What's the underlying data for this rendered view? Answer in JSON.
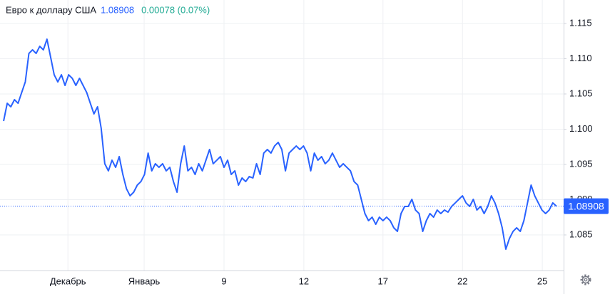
{
  "chart_data": {
    "type": "line",
    "title": "Евро к доллару США",
    "price": 1.08908,
    "change": "0.00078 (0.07%)",
    "color": "#2962ff",
    "price_color": "#2962ff",
    "change_color": "#22ab94",
    "values": [
      1.10116,
      1.10368,
      1.10318,
      1.10419,
      1.10368,
      1.1052,
      1.10671,
      1.11075,
      1.11126,
      1.11075,
      1.11176,
      1.11126,
      1.11277,
      1.11025,
      1.10772,
      1.10671,
      1.10772,
      1.10621,
      1.10772,
      1.10722,
      1.10621,
      1.10722,
      1.10621,
      1.1052,
      1.10368,
      1.10217,
      1.10318,
      1.10015,
      1.0951,
      1.09409,
      1.0956,
      1.09459,
      1.09611,
      1.09358,
      1.09156,
      1.09055,
      1.09106,
      1.09207,
      1.09257,
      1.09358,
      1.09661,
      1.09409,
      1.0951,
      1.09459,
      1.0951,
      1.09409,
      1.09459,
      1.09257,
      1.09106,
      1.0951,
      1.09762,
      1.09409,
      1.09459,
      1.09358,
      1.0951,
      1.09409,
      1.0956,
      1.09712,
      1.0951,
      1.0956,
      1.09611,
      1.09459,
      1.0956,
      1.09358,
      1.09409,
      1.09207,
      1.09308,
      1.09257,
      1.09328,
      1.09308,
      1.0951,
      1.09358,
      1.09661,
      1.09712,
      1.09661,
      1.09762,
      1.09813,
      1.09712,
      1.09409,
      1.09661,
      1.09712,
      1.09762,
      1.09712,
      1.09762,
      1.09661,
      1.09409,
      1.09661,
      1.0956,
      1.09611,
      1.0951,
      1.0956,
      1.09661,
      1.0956,
      1.09459,
      1.0951,
      1.09459,
      1.09409,
      1.09257,
      1.09207,
      1.09005,
      1.08803,
      1.08702,
      1.08752,
      1.08651,
      1.08752,
      1.08702,
      1.08752,
      1.08702,
      1.08601,
      1.0855,
      1.08803,
      1.08904,
      1.08904,
      1.09005,
      1.08853,
      1.08803,
      1.0855,
      1.08702,
      1.08803,
      1.08752,
      1.08853,
      1.08803,
      1.08853,
      1.08823,
      1.08904,
      1.08954,
      1.09005,
      1.09055,
      1.08954,
      1.08904,
      1.09005,
      1.08853,
      1.08904,
      1.08803,
      1.08904,
      1.09055,
      1.08954,
      1.08803,
      1.08601,
      1.08298,
      1.08449,
      1.0855,
      1.08601,
      1.0855,
      1.08702,
      1.08954,
      1.09207,
      1.09055,
      1.08954,
      1.08853,
      1.08803,
      1.08853,
      1.08954,
      1.08908
    ],
    "xlim": [
      -1,
      155
    ],
    "xticks": [
      {
        "value": 17.8,
        "label": "Декабрь"
      },
      {
        "value": 38.9,
        "label": "Январь"
      },
      {
        "value": 61.0,
        "label": "9"
      },
      {
        "value": 83.1,
        "label": "12"
      },
      {
        "value": 105.0,
        "label": "17"
      },
      {
        "value": 127.0,
        "label": "22"
      },
      {
        "value": 149.1,
        "label": "25"
      }
    ],
    "ylim": [
      1.07995,
      1.11833
    ],
    "yticks": [
      1.085,
      {
        "value": 1.09,
        "label": "1.090"
      },
      1.095,
      {
        "value": 1.1,
        "label": "1.100"
      },
      1.105,
      {
        "value": 1.11,
        "label": "1.110"
      },
      1.115
    ],
    "grid": true
  }
}
